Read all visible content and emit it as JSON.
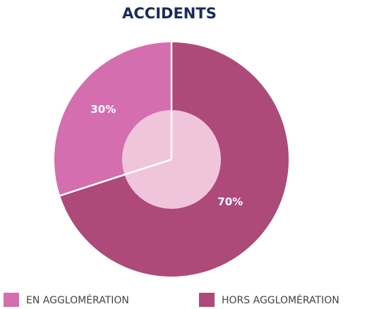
{
  "chart_data": {
    "type": "pie",
    "title": "ACCIDENTS",
    "categories": [
      "EN AGGLOMÉRATION",
      "HORS AGGLOMÉRATION"
    ],
    "values": [
      30,
      70
    ],
    "value_labels": [
      "30%",
      "70%"
    ],
    "colors": [
      "#d56eae",
      "#ad4a79"
    ]
  }
}
